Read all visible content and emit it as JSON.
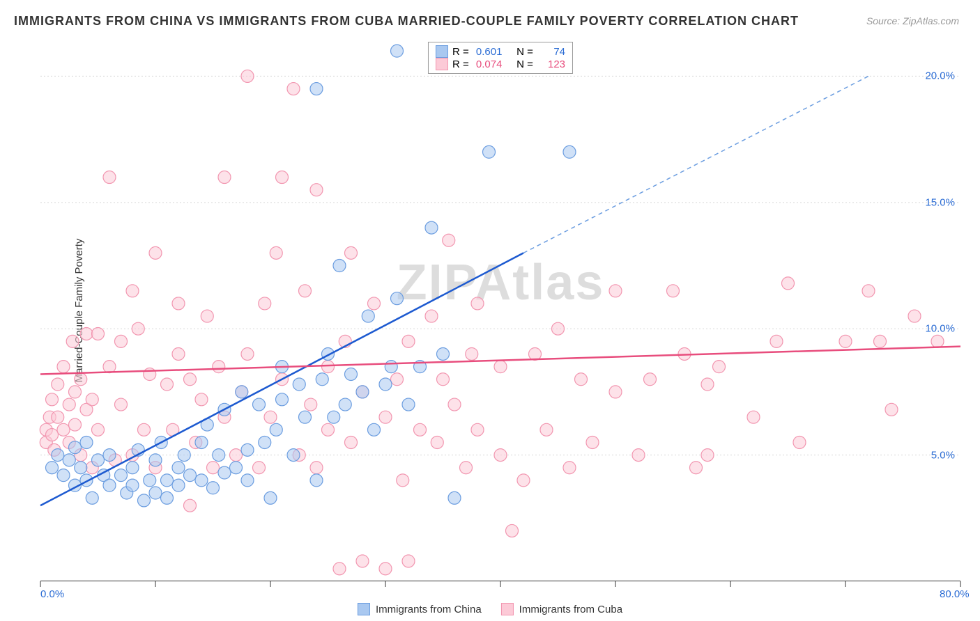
{
  "title": "IMMIGRANTS FROM CHINA VS IMMIGRANTS FROM CUBA MARRIED-COUPLE FAMILY POVERTY CORRELATION CHART",
  "source": "Source: ZipAtlas.com",
  "y_axis_label": "Married-Couple Family Poverty",
  "watermark": "ZIPAtlas",
  "chart": {
    "type": "scatter",
    "xlim": [
      0,
      80
    ],
    "ylim": [
      0,
      21.5
    ],
    "x_ticks": [
      0,
      10,
      20,
      30,
      40,
      50,
      60,
      70,
      80
    ],
    "x_tick_labels": {
      "0": "0.0%",
      "80": "80.0%"
    },
    "y_ticks": [
      5,
      10,
      15,
      20
    ],
    "y_tick_labels": {
      "5": "5.0%",
      "10": "10.0%",
      "15": "15.0%",
      "20": "20.0%"
    },
    "grid_color": "#d8d8d8",
    "background_color": "#ffffff",
    "axis_label_color_x": "#2b6cd4",
    "axis_label_color_y": "#2b6cd4",
    "series": [
      {
        "name": "Immigrants from China",
        "color_fill": "#a9c8f0",
        "color_stroke": "#6b9de0",
        "marker_radius": 9,
        "fill_opacity": 0.55,
        "R": "0.601",
        "N": "74",
        "trend": {
          "x1": 0,
          "y1": 3.0,
          "x2": 42,
          "y2": 13.0,
          "color": "#1d5ad0",
          "width": 2.5
        },
        "trend_ext": {
          "x1": 42,
          "y1": 13.0,
          "x2": 72,
          "y2": 20.0,
          "color": "#6b9de0",
          "dash": "6,5",
          "width": 1.5
        },
        "points": [
          [
            1,
            4.5
          ],
          [
            1.5,
            5.0
          ],
          [
            2,
            4.2
          ],
          [
            2.5,
            4.8
          ],
          [
            3,
            3.8
          ],
          [
            3,
            5.3
          ],
          [
            3.5,
            4.5
          ],
          [
            4,
            4.0
          ],
          [
            4,
            5.5
          ],
          [
            4.5,
            3.3
          ],
          [
            5,
            4.8
          ],
          [
            5.5,
            4.2
          ],
          [
            6,
            3.8
          ],
          [
            6,
            5.0
          ],
          [
            7,
            4.2
          ],
          [
            7.5,
            3.5
          ],
          [
            8,
            4.5
          ],
          [
            8,
            3.8
          ],
          [
            8.5,
            5.2
          ],
          [
            9,
            3.2
          ],
          [
            9.5,
            4.0
          ],
          [
            10,
            3.5
          ],
          [
            10,
            4.8
          ],
          [
            10.5,
            5.5
          ],
          [
            11,
            4.0
          ],
          [
            11,
            3.3
          ],
          [
            12,
            4.5
          ],
          [
            12,
            3.8
          ],
          [
            12.5,
            5.0
          ],
          [
            13,
            4.2
          ],
          [
            14,
            5.5
          ],
          [
            14,
            4.0
          ],
          [
            14.5,
            6.2
          ],
          [
            15,
            3.7
          ],
          [
            15.5,
            5.0
          ],
          [
            16,
            4.3
          ],
          [
            16,
            6.8
          ],
          [
            17,
            4.5
          ],
          [
            17.5,
            7.5
          ],
          [
            18,
            5.2
          ],
          [
            18,
            4.0
          ],
          [
            19,
            7.0
          ],
          [
            19.5,
            5.5
          ],
          [
            20,
            3.3
          ],
          [
            20.5,
            6.0
          ],
          [
            21,
            8.5
          ],
          [
            21,
            7.2
          ],
          [
            22,
            5.0
          ],
          [
            22.5,
            7.8
          ],
          [
            23,
            6.5
          ],
          [
            24,
            4.0
          ],
          [
            24,
            19.5
          ],
          [
            24.5,
            8.0
          ],
          [
            25,
            9.0
          ],
          [
            25.5,
            6.5
          ],
          [
            26,
            12.5
          ],
          [
            26.5,
            7.0
          ],
          [
            27,
            8.2
          ],
          [
            28,
            7.5
          ],
          [
            28.5,
            10.5
          ],
          [
            29,
            6.0
          ],
          [
            30,
            7.8
          ],
          [
            30.5,
            8.5
          ],
          [
            31,
            11.2
          ],
          [
            31,
            21.0
          ],
          [
            32,
            7.0
          ],
          [
            33,
            8.5
          ],
          [
            34,
            14.0
          ],
          [
            35,
            9.0
          ],
          [
            36,
            3.3
          ],
          [
            39,
            17.0
          ],
          [
            46,
            17.0
          ]
        ]
      },
      {
        "name": "Immigrants from Cuba",
        "color_fill": "#fccad7",
        "color_stroke": "#f296b0",
        "marker_radius": 9,
        "fill_opacity": 0.55,
        "R": "0.074",
        "N": "123",
        "trend": {
          "x1": 0,
          "y1": 8.2,
          "x2": 80,
          "y2": 9.3,
          "color": "#e84d7d",
          "width": 2.5
        },
        "points": [
          [
            0.5,
            5.5
          ],
          [
            0.5,
            6.0
          ],
          [
            0.8,
            6.5
          ],
          [
            1,
            5.8
          ],
          [
            1,
            7.2
          ],
          [
            1.2,
            5.2
          ],
          [
            1.5,
            6.5
          ],
          [
            1.5,
            7.8
          ],
          [
            2,
            6.0
          ],
          [
            2,
            8.5
          ],
          [
            2.5,
            5.5
          ],
          [
            2.5,
            7.0
          ],
          [
            2.8,
            9.5
          ],
          [
            3,
            6.2
          ],
          [
            3,
            7.5
          ],
          [
            3.5,
            5.0
          ],
          [
            3.5,
            8.0
          ],
          [
            4,
            6.8
          ],
          [
            4,
            9.8
          ],
          [
            4.5,
            4.5
          ],
          [
            4.5,
            7.2
          ],
          [
            5,
            9.8
          ],
          [
            5,
            6.0
          ],
          [
            6,
            16.0
          ],
          [
            6,
            8.5
          ],
          [
            6.5,
            4.8
          ],
          [
            7,
            9.5
          ],
          [
            7,
            7.0
          ],
          [
            8,
            11.5
          ],
          [
            8,
            5.0
          ],
          [
            8.5,
            10.0
          ],
          [
            9,
            6.0
          ],
          [
            9.5,
            8.2
          ],
          [
            10,
            4.5
          ],
          [
            10,
            13.0
          ],
          [
            11,
            7.8
          ],
          [
            11.5,
            6.0
          ],
          [
            12,
            9.0
          ],
          [
            12,
            11.0
          ],
          [
            13,
            3.0
          ],
          [
            13,
            8.0
          ],
          [
            13.5,
            5.5
          ],
          [
            14,
            7.2
          ],
          [
            14.5,
            10.5
          ],
          [
            15,
            4.5
          ],
          [
            15.5,
            8.5
          ],
          [
            16,
            16.0
          ],
          [
            16,
            6.5
          ],
          [
            17,
            5.0
          ],
          [
            17.5,
            7.5
          ],
          [
            18,
            20.0
          ],
          [
            18,
            9.0
          ],
          [
            19,
            4.5
          ],
          [
            19.5,
            11.0
          ],
          [
            20,
            6.5
          ],
          [
            20.5,
            13.0
          ],
          [
            21,
            16.0
          ],
          [
            21,
            8.0
          ],
          [
            22,
            19.5
          ],
          [
            22.5,
            5.0
          ],
          [
            23,
            11.5
          ],
          [
            23.5,
            7.0
          ],
          [
            24,
            4.5
          ],
          [
            24,
            15.5
          ],
          [
            25,
            8.5
          ],
          [
            25,
            6.0
          ],
          [
            26,
            0.5
          ],
          [
            26.5,
            9.5
          ],
          [
            27,
            5.5
          ],
          [
            27,
            13.0
          ],
          [
            28,
            7.5
          ],
          [
            28,
            0.8
          ],
          [
            29,
            11.0
          ],
          [
            30,
            0.5
          ],
          [
            30,
            6.5
          ],
          [
            31,
            8.0
          ],
          [
            31.5,
            4.0
          ],
          [
            32,
            9.5
          ],
          [
            32,
            0.8
          ],
          [
            33,
            6.0
          ],
          [
            34,
            10.5
          ],
          [
            34.5,
            5.5
          ],
          [
            35,
            8.0
          ],
          [
            35.5,
            13.5
          ],
          [
            36,
            7.0
          ],
          [
            37,
            4.5
          ],
          [
            37.5,
            9.0
          ],
          [
            38,
            6.0
          ],
          [
            38,
            11.0
          ],
          [
            40,
            5.0
          ],
          [
            40,
            8.5
          ],
          [
            41,
            2.0
          ],
          [
            42,
            4.0
          ],
          [
            43,
            9.0
          ],
          [
            44,
            6.0
          ],
          [
            45,
            10.0
          ],
          [
            46,
            4.5
          ],
          [
            47,
            8.0
          ],
          [
            48,
            5.5
          ],
          [
            50,
            11.5
          ],
          [
            50,
            7.5
          ],
          [
            52,
            5.0
          ],
          [
            53,
            8.0
          ],
          [
            55,
            11.5
          ],
          [
            56,
            9.0
          ],
          [
            57,
            4.5
          ],
          [
            58,
            5.0
          ],
          [
            58,
            7.8
          ],
          [
            59,
            8.5
          ],
          [
            62,
            6.5
          ],
          [
            64,
            9.5
          ],
          [
            65,
            11.8
          ],
          [
            66,
            5.5
          ],
          [
            70,
            9.5
          ],
          [
            72,
            11.5
          ],
          [
            73,
            9.5
          ],
          [
            74,
            6.8
          ],
          [
            76,
            10.5
          ],
          [
            78,
            9.5
          ]
        ]
      }
    ]
  },
  "legend_bottom": [
    {
      "label": "Immigrants from China"
    },
    {
      "label": "Immigrants from Cuba"
    }
  ]
}
